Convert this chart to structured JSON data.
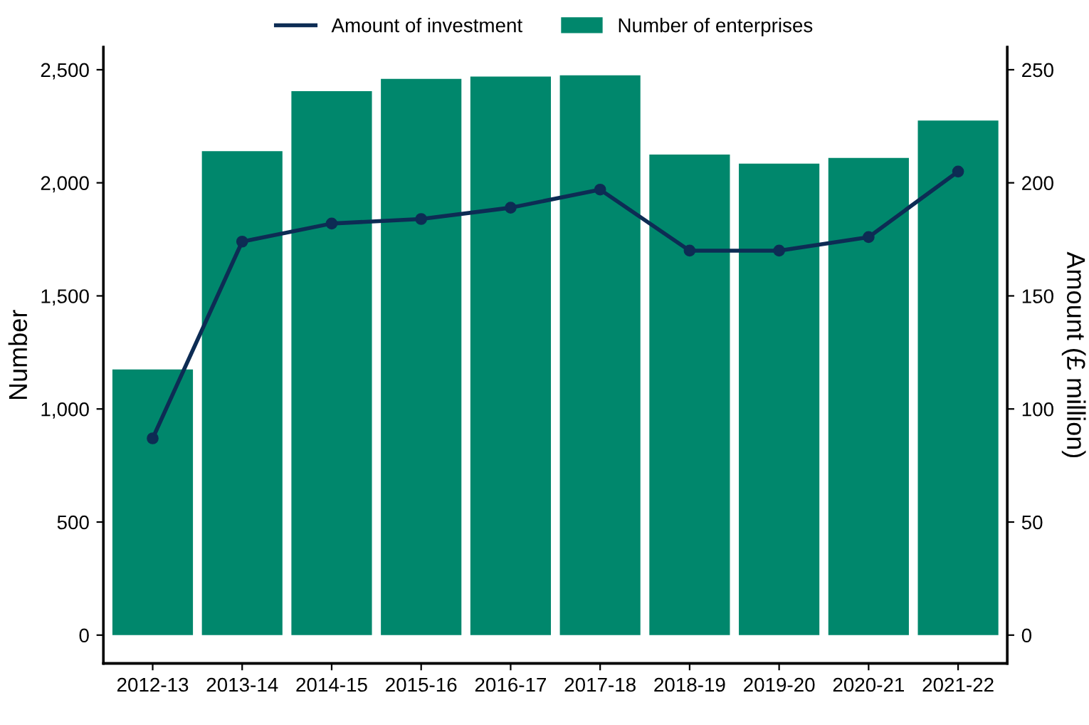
{
  "chart_data": {
    "type": "bar",
    "categories": [
      "2012-13",
      "2013-14",
      "2014-15",
      "2015-16",
      "2016-17",
      "2017-18",
      "2018-19",
      "2019-20",
      "2020-21",
      "2021-22"
    ],
    "series": [
      {
        "name": "Number of enterprises",
        "color": "#00876c",
        "values": [
          1175,
          2140,
          2405,
          2460,
          2470,
          2475,
          2125,
          2085,
          2110,
          2275
        ]
      },
      {
        "name": "Amount of investment",
        "type": "line",
        "axis": "y2",
        "color": "#0d2c54",
        "values": [
          87,
          174,
          182,
          184,
          189,
          197,
          170,
          170,
          176,
          205
        ]
      }
    ],
    "ylabel": "Number",
    "y2label": "Amount (£ million)",
    "ylim": [
      -125,
      2600
    ],
    "yticks": [
      {
        "value": 0,
        "label": "0"
      },
      {
        "value": 500,
        "label": "500"
      },
      {
        "value": 1000,
        "label": "1,000"
      },
      {
        "value": 1500,
        "label": "1,500"
      },
      {
        "value": 2000,
        "label": "2,000"
      },
      {
        "value": 2500,
        "label": "2,500"
      }
    ],
    "y2lim": [
      -12.5,
      260
    ],
    "y2ticks": [
      0,
      50,
      100,
      150,
      200,
      250
    ],
    "marker": "circle",
    "line_style": "solid",
    "grid": false,
    "legend": "top"
  }
}
